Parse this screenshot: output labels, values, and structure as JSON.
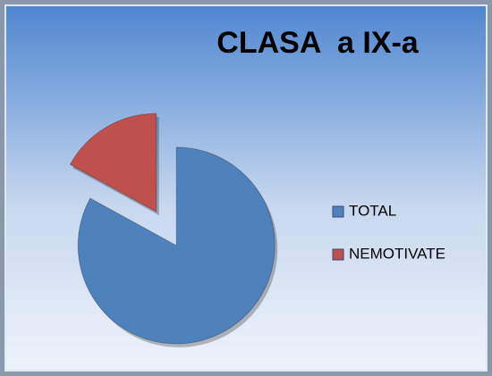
{
  "chart_data": {
    "type": "pie",
    "title": "CLASA  a IX-a",
    "categories": [
      "TOTAL",
      "NEMOTIVATE"
    ],
    "values": [
      83,
      17
    ],
    "colors": [
      "#4f81bd",
      "#c0504d"
    ],
    "legend": "right"
  }
}
